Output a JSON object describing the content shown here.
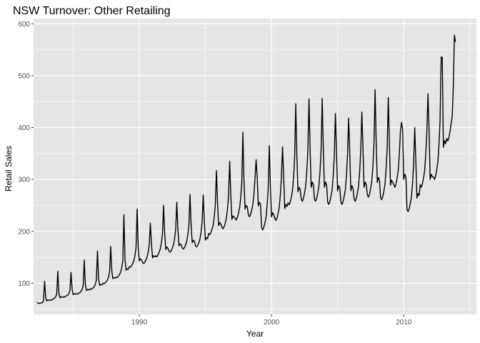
{
  "chart_data": {
    "type": "line",
    "title": "NSW Turnover: Other Retailing",
    "xlabel": "Year",
    "ylabel": "Retail Sales",
    "xlim": [
      1982.0,
      2015.5
    ],
    "ylim": [
      40,
      610
    ],
    "x_ticks": [
      1990,
      2000,
      2010
    ],
    "y_ticks": [
      100,
      200,
      300,
      400,
      500,
      600
    ],
    "grid": true,
    "legend": "none",
    "colors": {
      "panel": "#e5e5e5",
      "grid": "#ffffff",
      "line": "#000000",
      "tick_label": "#4d4d4d"
    },
    "series": [
      {
        "start_year": 1982,
        "start_month": 4,
        "frequency": "monthly",
        "values": [
          63,
          62,
          61,
          62,
          62,
          63,
          66,
          104,
          72,
          66,
          68,
          67,
          68,
          67,
          69,
          70,
          71,
          74,
          79,
          123,
          80,
          72,
          74,
          73,
          74,
          73,
          75,
          76,
          77,
          80,
          86,
          121,
          88,
          78,
          80,
          79,
          80,
          79,
          81,
          82,
          84,
          88,
          95,
          145,
          97,
          86,
          88,
          87,
          89,
          88,
          90,
          91,
          93,
          98,
          106,
          162,
          108,
          96,
          98,
          97,
          100,
          99,
          101,
          103,
          106,
          112,
          122,
          171,
          124,
          109,
          111,
          110,
          112,
          111,
          114,
          117,
          121,
          130,
          143,
          232,
          146,
          125,
          128,
          127,
          132,
          131,
          134,
          138,
          143,
          153,
          168,
          243,
          170,
          143,
          147,
          145,
          140,
          138,
          141,
          145,
          150,
          160,
          174,
          216,
          176,
          149,
          153,
          151,
          153,
          151,
          155,
          160,
          166,
          178,
          195,
          250,
          197,
          165,
          170,
          167,
          162,
          160,
          163,
          168,
          174,
          186,
          203,
          256,
          205,
          172,
          176,
          174,
          168,
          166,
          169,
          174,
          180,
          193,
          211,
          271,
          213,
          178,
          183,
          181,
          172,
          170,
          173,
          178,
          185,
          198,
          218,
          270,
          220,
          183,
          188,
          186,
          196,
          194,
          198,
          204,
          212,
          228,
          252,
          317,
          255,
          211,
          217,
          214,
          208,
          205,
          209,
          216,
          225,
          242,
          268,
          335,
          271,
          223,
          230,
          227,
          225,
          222,
          227,
          235,
          245,
          264,
          293,
          391,
          297,
          243,
          250,
          247,
          232,
          228,
          233,
          241,
          251,
          271,
          301,
          338,
          305,
          249,
          256,
          252,
          207,
          203,
          208,
          216,
          227,
          250,
          283,
          365,
          287,
          228,
          236,
          232,
          225,
          221,
          226,
          235,
          246,
          270,
          304,
          363,
          308,
          244,
          252,
          248,
          255,
          251,
          257,
          266,
          278,
          304,
          342,
          446,
          347,
          276,
          285,
          281,
          262,
          258,
          264,
          274,
          287,
          315,
          356,
          455,
          361,
          285,
          295,
          290,
          262,
          258,
          264,
          274,
          287,
          315,
          356,
          456,
          361,
          285,
          295,
          290,
          256,
          252,
          258,
          268,
          280,
          307,
          347,
          427,
          351,
          278,
          288,
          283,
          256,
          252,
          258,
          268,
          280,
          307,
          347,
          418,
          351,
          278,
          288,
          283,
          262,
          258,
          264,
          274,
          287,
          315,
          356,
          430,
          361,
          285,
          295,
          290,
          270,
          266,
          272,
          283,
          296,
          325,
          368,
          473,
          373,
          294,
          304,
          299,
          265,
          261,
          267,
          278,
          291,
          320,
          362,
          458,
          367,
          289,
          299,
          294,
          290,
          285,
          292,
          303,
          317,
          348,
          392,
          410,
          397,
          300,
          310,
          305,
          242,
          238,
          244,
          254,
          266,
          292,
          331,
          400,
          335,
          264,
          273,
          269,
          290,
          285,
          292,
          303,
          317,
          348,
          392,
          465,
          397,
          300,
          310,
          305,
          305,
          300,
          307,
          319,
          334,
          366,
          414,
          536,
          535,
          362,
          375,
          369,
          379,
          374,
          381,
          392,
          408,
          420,
          478,
          578,
          565
        ]
      }
    ]
  }
}
